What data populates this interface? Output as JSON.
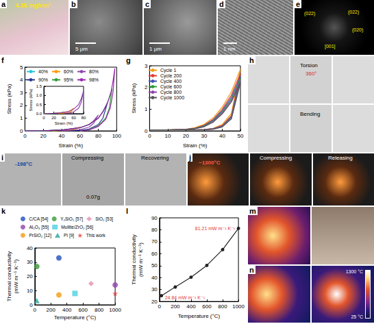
{
  "chart_data": [
    {
      "panel": "f",
      "type": "line",
      "x_label": "Strain (%)",
      "y_label": "Stress (kPa)",
      "xlim": [
        0,
        100
      ],
      "xticks": [
        0,
        20,
        40,
        60,
        80,
        100
      ],
      "ylim": [
        0,
        5
      ],
      "yticks": [
        0,
        1,
        2,
        3,
        4,
        5
      ],
      "grid": false,
      "legend": "upper left",
      "marker": "none",
      "series": [
        {
          "name": "40%",
          "color": "#26c6da",
          "x": [
            0,
            10,
            20,
            30,
            35,
            40,
            35,
            30,
            20,
            10
          ],
          "values": [
            0,
            0.01,
            0.02,
            0.04,
            0.06,
            0.1,
            0.04,
            0.02,
            0.01,
            0
          ]
        },
        {
          "name": "60%",
          "color": "#ff9800",
          "x": [
            0,
            20,
            30,
            40,
            50,
            55,
            60,
            55,
            50,
            40,
            30
          ],
          "values": [
            0,
            0.02,
            0.04,
            0.07,
            0.13,
            0.2,
            0.3,
            0.12,
            0.06,
            0.02,
            0
          ]
        },
        {
          "name": "80%",
          "color": "#8e44ad",
          "x": [
            0,
            20,
            40,
            50,
            60,
            70,
            75,
            80,
            75,
            70,
            60,
            50,
            40
          ],
          "values": [
            0,
            0.02,
            0.07,
            0.12,
            0.25,
            0.5,
            0.8,
            1.25,
            0.6,
            0.3,
            0.1,
            0.03,
            0
          ]
        },
        {
          "name": "90%",
          "color": "#283593",
          "x": [
            0,
            20,
            40,
            60,
            70,
            80,
            85,
            90,
            85,
            80,
            70,
            60,
            50
          ],
          "values": [
            0,
            0.02,
            0.07,
            0.25,
            0.5,
            1.0,
            1.5,
            2.2,
            1.0,
            0.5,
            0.15,
            0.04,
            0
          ]
        },
        {
          "name": "95%",
          "color": "#2e9d3a",
          "x": [
            0,
            20,
            40,
            60,
            70,
            80,
            85,
            90,
            93,
            95,
            92,
            88,
            80,
            70,
            60
          ],
          "values": [
            0,
            0.02,
            0.07,
            0.25,
            0.5,
            1.0,
            1.5,
            2.2,
            2.8,
            3.3,
            1.8,
            1.0,
            0.4,
            0.1,
            0
          ]
        },
        {
          "name": "98%",
          "color": "#9c27b0",
          "x": [
            0,
            20,
            40,
            60,
            70,
            80,
            85,
            90,
            94,
            96,
            98,
            96,
            93,
            88,
            80,
            70,
            60
          ],
          "values": [
            0,
            0.02,
            0.07,
            0.25,
            0.5,
            1.0,
            1.5,
            2.2,
            3.1,
            3.9,
            4.9,
            3.0,
            1.8,
            0.9,
            0.35,
            0.08,
            0
          ]
        }
      ],
      "inset": {
        "type": "line",
        "x_label": "Strain (%)",
        "y_label": "Stress (kPa)",
        "xlim": [
          0,
          80
        ],
        "xticks": [
          0,
          20,
          40,
          60,
          80
        ],
        "ylim": [
          0,
          1.5
        ],
        "yticks": [
          {
            "value": 0,
            "label": "0.0"
          },
          0.5,
          {
            "value": 1,
            "label": "1.0"
          },
          1.5
        ],
        "grid": false,
        "marker": "none",
        "series": [
          {
            "name": "40%",
            "color": "#26c6da",
            "x": [
              0,
              10,
              20,
              30,
              35,
              40,
              35,
              30,
              20,
              10
            ],
            "values": [
              0,
              0.01,
              0.02,
              0.04,
              0.06,
              0.1,
              0.04,
              0.02,
              0.01,
              0
            ]
          },
          {
            "name": "60%",
            "color": "#ff9800",
            "x": [
              0,
              20,
              30,
              40,
              50,
              55,
              60,
              55,
              50,
              40,
              30
            ],
            "values": [
              0,
              0.02,
              0.04,
              0.07,
              0.13,
              0.2,
              0.3,
              0.12,
              0.06,
              0.02,
              0
            ]
          },
          {
            "name": "80%",
            "color": "#8e44ad",
            "x": [
              0,
              20,
              40,
              50,
              60,
              70,
              75,
              80,
              75,
              70,
              60,
              50,
              40
            ],
            "values": [
              0,
              0.02,
              0.07,
              0.12,
              0.25,
              0.5,
              0.8,
              1.25,
              0.6,
              0.3,
              0.1,
              0.03,
              0
            ]
          }
        ]
      }
    },
    {
      "panel": "g",
      "type": "line",
      "x_label": "Strain (%)",
      "y_label": "Stress (kPa)",
      "xlim": [
        0,
        50
      ],
      "xticks": [
        0,
        10,
        20,
        30,
        40,
        50
      ],
      "ylim": [
        0,
        3
      ],
      "yticks": [
        0,
        1,
        2,
        3
      ],
      "grid": false,
      "legend": "upper left",
      "marker": "none",
      "x": [
        0,
        10,
        20,
        25,
        30,
        35,
        40,
        45,
        50,
        45,
        40,
        35,
        30,
        25,
        20,
        10,
        0
      ],
      "series": [
        {
          "name": "Cycle 1",
          "color": "#f39c12",
          "values": [
            0.05,
            0.05,
            0.08,
            0.15,
            0.3,
            0.6,
            1.1,
            1.8,
            2.85,
            0.8,
            0.3,
            0.12,
            0.06,
            0.05,
            0.05,
            0.05,
            0.05
          ]
        },
        {
          "name": "Cycle 200",
          "color": "#e53935",
          "values": [
            0.05,
            0.05,
            0.07,
            0.13,
            0.26,
            0.53,
            1.0,
            1.65,
            2.65,
            0.7,
            0.25,
            0.1,
            0.06,
            0.05,
            0.05,
            0.05,
            0.05
          ]
        },
        {
          "name": "Cycle 400",
          "color": "#3f51b5",
          "values": [
            0.05,
            0.05,
            0.07,
            0.12,
            0.24,
            0.5,
            0.93,
            1.55,
            2.5,
            0.65,
            0.22,
            0.1,
            0.06,
            0.05,
            0.05,
            0.05,
            0.05
          ]
        },
        {
          "name": "Cycle 600",
          "color": "#2e9d3a",
          "values": [
            0.05,
            0.05,
            0.06,
            0.11,
            0.22,
            0.46,
            0.88,
            1.47,
            2.4,
            0.6,
            0.2,
            0.09,
            0.05,
            0.05,
            0.05,
            0.05,
            0.05
          ]
        },
        {
          "name": "Cycle 800",
          "color": "#8e44ad",
          "values": [
            0.05,
            0.05,
            0.06,
            0.1,
            0.2,
            0.43,
            0.83,
            1.4,
            2.3,
            0.57,
            0.19,
            0.08,
            0.05,
            0.05,
            0.05,
            0.05,
            0.05
          ]
        },
        {
          "name": "Cycle 1000",
          "color": "#555555",
          "values": [
            0.05,
            0.05,
            0.06,
            0.1,
            0.19,
            0.4,
            0.78,
            1.33,
            2.2,
            0.55,
            0.18,
            0.08,
            0.05,
            0.05,
            0.05,
            0.05,
            0.05
          ]
        }
      ]
    },
    {
      "panel": "k",
      "type": "scatter",
      "x_label": "Temperature (°C)",
      "y_label": "Thermal conductivity (mW m⁻¹ K⁻¹)",
      "xlim": [
        0,
        1000
      ],
      "xticks": [
        0,
        200,
        400,
        600,
        800,
        1000
      ],
      "ylim": [
        0,
        40
      ],
      "yticks": [
        0,
        10,
        20,
        30,
        40
      ],
      "grid": false,
      "legend": "top",
      "series": [
        {
          "name": "C/CA [54]",
          "color": "#1f4fc2",
          "marker": "circle",
          "x": [
            300
          ],
          "values": [
            33
          ]
        },
        {
          "name": "Y₂SiO₅ [57]",
          "color": "#3a9a3a",
          "marker": "circle",
          "x": [
            25
          ],
          "values": [
            27
          ]
        },
        {
          "name": "SiO₂ [53]",
          "color": "#e58fb0",
          "marker": "diamond",
          "x": [
            700
          ],
          "values": [
            15
          ]
        },
        {
          "name": "Al₂O₃ [55]",
          "color": "#8e44ad",
          "marker": "circle",
          "x": [
            1000
          ],
          "values": [
            14
          ]
        },
        {
          "name": "Mullite/ZrO₂ [56]",
          "color": "#4dd0e1",
          "marker": "square",
          "x": [
            500
          ],
          "values": [
            8
          ]
        },
        {
          "name": "PrSiO₂ [12]",
          "color": "#f39c12",
          "marker": "circle",
          "x": [
            300
          ],
          "values": [
            7
          ]
        },
        {
          "name": "PI [9]",
          "color": "#26a69a",
          "marker": "triangle",
          "x": [
            25
          ],
          "values": [
            3
          ]
        },
        {
          "name": "This work",
          "color": "#e53935",
          "marker": "star",
          "x": [
            1000
          ],
          "values": [
            8
          ]
        }
      ]
    },
    {
      "panel": "l",
      "type": "line",
      "x_label": "Temperature (°C)",
      "y_label": "Thermal conductivity (mW m⁻¹ K⁻¹)",
      "xlim": [
        0,
        1000
      ],
      "xticks": [
        0,
        200,
        400,
        600,
        800,
        1000
      ],
      "ylim": [
        20,
        90
      ],
      "yticks": [
        20,
        30,
        40,
        50,
        60,
        70,
        80,
        90
      ],
      "grid": false,
      "marker": "circle",
      "color": "#222222",
      "x": [
        25,
        200,
        400,
        600,
        800,
        1000
      ],
      "values": [
        24.84,
        32.1,
        40.3,
        50.2,
        63.4,
        81.21
      ],
      "annotations": [
        {
          "text": "24.84 mW m⁻¹ K⁻¹",
          "x": 25,
          "y": 24.84,
          "color": "#e53935"
        },
        {
          "text": "81.21 mW m⁻¹ K⁻¹",
          "x": 1000,
          "y": 81.21,
          "color": "#e53935"
        }
      ]
    }
  ],
  "images": [
    {
      "panel": "a",
      "texts": [
        "4.35 mg/cm³"
      ]
    },
    {
      "panel": "b",
      "texts": [
        "5 µm"
      ]
    },
    {
      "panel": "c",
      "texts": [
        "1 µm"
      ]
    },
    {
      "panel": "d",
      "texts": [
        "1 nm"
      ]
    },
    {
      "panel": "e",
      "texts": [
        "(022)",
        "(022)",
        "(020)",
        "[001]"
      ]
    },
    {
      "panel": "h",
      "texts": [
        "Torsion",
        "360°",
        "Bending"
      ]
    },
    {
      "panel": "i",
      "texts": [
        "-198°C",
        "Compressing",
        "Recovering",
        "0.07g"
      ]
    },
    {
      "panel": "j",
      "texts": [
        "~1300°C",
        "Compressing",
        "Releasing"
      ]
    },
    {
      "panel": "m"
    },
    {
      "panel": "n",
      "texts": [
        "1300 °C",
        "25 °C"
      ]
    }
  ]
}
